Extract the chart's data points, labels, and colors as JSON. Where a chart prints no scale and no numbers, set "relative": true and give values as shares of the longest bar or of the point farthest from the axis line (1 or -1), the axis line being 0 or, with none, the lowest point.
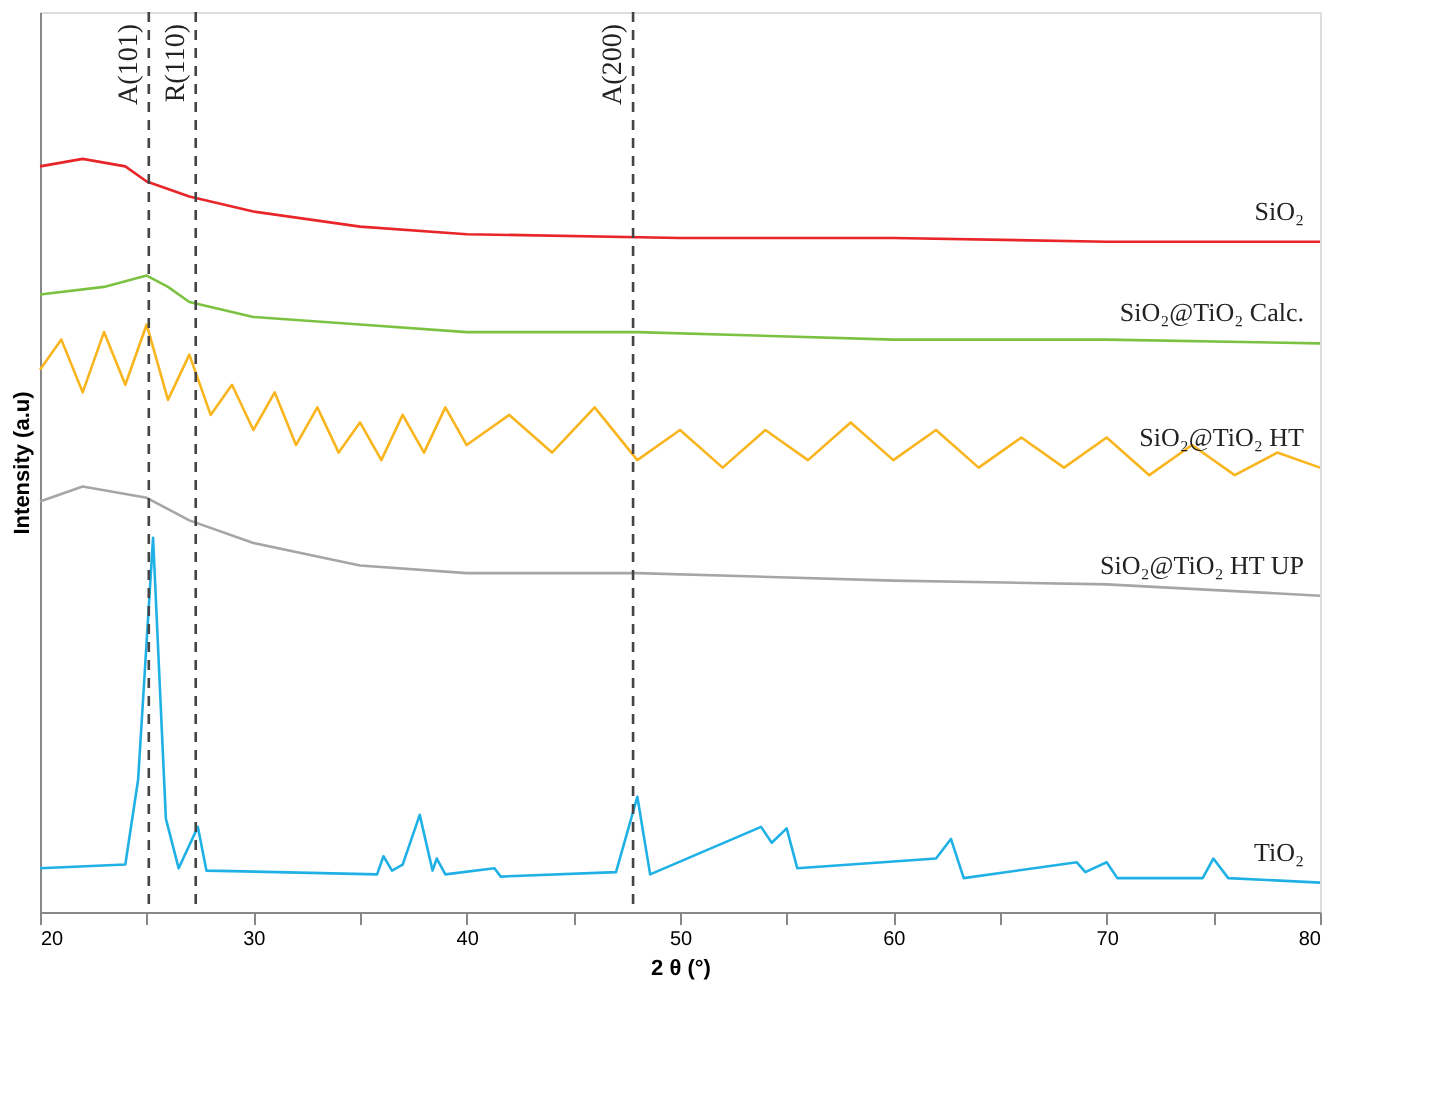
{
  "chart_data": {
    "type": "line",
    "relative": true,
    "xlabel": "2 θ (°)",
    "ylabel": "Intensity (a.u)",
    "legend": false,
    "grid": false,
    "tick_labels": "x",
    "xlim": [
      20,
      80
    ],
    "xticks": [
      20,
      {
        "value": 25,
        "label": null
      },
      30,
      {
        "value": 35,
        "label": null
      },
      40,
      {
        "value": 45,
        "label": null
      },
      50,
      {
        "value": 55,
        "label": null
      },
      60,
      {
        "value": 65,
        "label": null
      },
      70,
      {
        "value": 75,
        "label": null
      },
      80
    ],
    "ref_lines": [
      {
        "axis": "x",
        "value": 25.1,
        "label": "A(101)",
        "line_style": "dashed",
        "color": "#444444"
      },
      {
        "axis": "x",
        "value": 27.3,
        "label": "R(110)",
        "line_style": "dashed",
        "color": "#444444"
      },
      {
        "axis": "x",
        "value": 47.8,
        "label": "A(200)",
        "line_style": "dashed",
        "color": "#444444"
      }
    ],
    "series": [
      {
        "name": "SiO₂",
        "color": "#e8262a",
        "x": [
          20,
          22,
          24,
          25,
          27,
          30,
          35,
          40,
          50,
          60,
          70,
          80
        ],
        "values": [
          0.99,
          1.0,
          0.99,
          0.97,
          0.95,
          0.93,
          0.91,
          0.9,
          0.895,
          0.895,
          0.89,
          0.89
        ]
      },
      {
        "name": "SiO₂@TiO₂ Calc.",
        "color": "#7cc242",
        "x": [
          20,
          23,
          25,
          26,
          27,
          30,
          35,
          40,
          48,
          60,
          70,
          80
        ],
        "values": [
          0.82,
          0.83,
          0.845,
          0.83,
          0.81,
          0.79,
          0.78,
          0.77,
          0.77,
          0.76,
          0.76,
          0.755
        ]
      },
      {
        "name": "SiO₂@TiO₂ HT",
        "color": "#f9b51e",
        "x": [
          20,
          21,
          22,
          23,
          24,
          25,
          26,
          27,
          28,
          29,
          30,
          31,
          32,
          33,
          34,
          35,
          36,
          37,
          38,
          39,
          40,
          42,
          44,
          46,
          48,
          50,
          52,
          54,
          56,
          58,
          60,
          62,
          64,
          66,
          68,
          70,
          72,
          74,
          76,
          78,
          80
        ],
        "values": [
          0.72,
          0.76,
          0.69,
          0.77,
          0.7,
          0.78,
          0.68,
          0.74,
          0.66,
          0.7,
          0.64,
          0.69,
          0.62,
          0.67,
          0.61,
          0.65,
          0.6,
          0.66,
          0.61,
          0.67,
          0.62,
          0.66,
          0.61,
          0.67,
          0.6,
          0.64,
          0.59,
          0.64,
          0.6,
          0.65,
          0.6,
          0.64,
          0.59,
          0.63,
          0.59,
          0.63,
          0.58,
          0.62,
          0.58,
          0.61,
          0.59
        ]
      },
      {
        "name": "SiO₂@TiO₂ HT UP",
        "color": "#a6a6a6",
        "x": [
          20,
          22,
          25,
          27,
          30,
          35,
          40,
          48,
          60,
          70,
          80
        ],
        "values": [
          0.545,
          0.565,
          0.55,
          0.52,
          0.49,
          0.46,
          0.45,
          0.45,
          0.44,
          0.435,
          0.42
        ]
      },
      {
        "name": "TiO₂",
        "color": "#1fb1e6",
        "x": [
          20,
          24,
          24.6,
          25.3,
          25.9,
          26.5,
          27.4,
          27.8,
          35.8,
          36.1,
          36.5,
          37,
          37.8,
          38.4,
          38.6,
          39,
          41.3,
          41.6,
          47,
          48,
          48.6,
          53.8,
          54.3,
          55,
          55.5,
          62,
          62.7,
          63.3,
          68.6,
          69,
          70,
          70.5,
          74.5,
          75,
          75.7,
          80
        ],
        "values": [
          0.058,
          0.063,
          0.176,
          0.497,
          0.124,
          0.058,
          0.113,
          0.055,
          0.05,
          0.074,
          0.055,
          0.063,
          0.129,
          0.055,
          0.071,
          0.05,
          0.058,
          0.047,
          0.053,
          0.153,
          0.05,
          0.113,
          0.092,
          0.111,
          0.058,
          0.071,
          0.097,
          0.045,
          0.066,
          0.053,
          0.066,
          0.045,
          0.045,
          0.071,
          0.045,
          0.039
        ]
      }
    ]
  }
}
